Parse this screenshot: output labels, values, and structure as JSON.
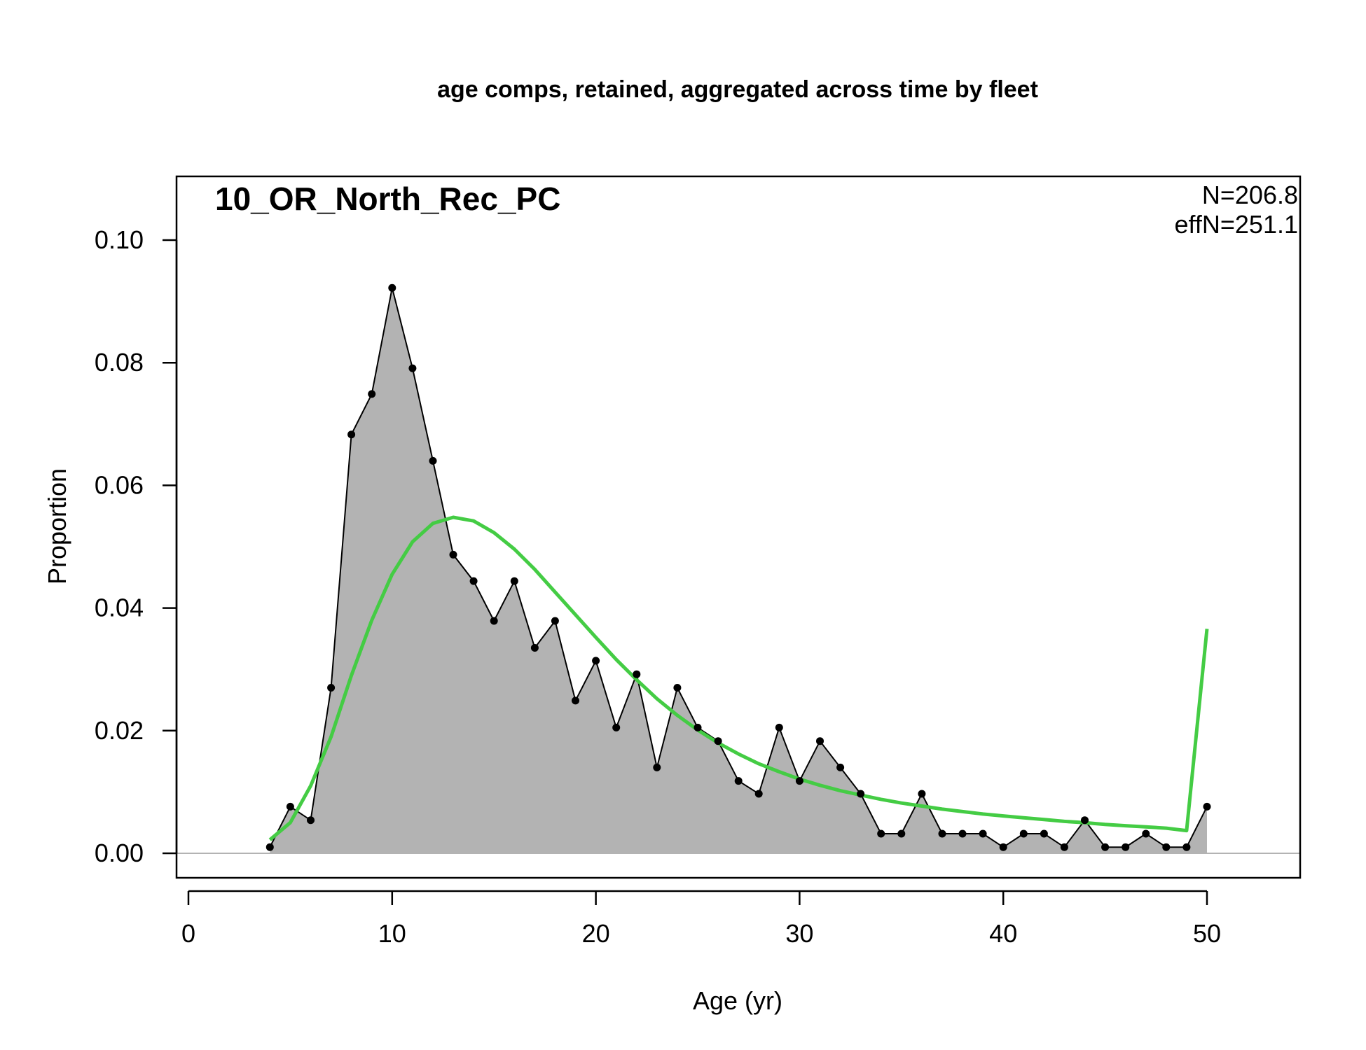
{
  "chart_data": {
    "type": "area",
    "title": "age comps, retained, aggregated across time by fleet",
    "panel_label": "10_OR_North_Rec_PC",
    "stats": {
      "n_label": "N=206.8",
      "effn_label": "effN=251.1"
    },
    "xlabel": "Age (yr)",
    "ylabel": "Proportion",
    "xlim": [
      0,
      55
    ],
    "ylim": [
      0,
      0.11
    ],
    "x_ticks": [
      0,
      10,
      20,
      30,
      40,
      50
    ],
    "x_tick_labels": [
      "0",
      "10",
      "20",
      "30",
      "40",
      "50"
    ],
    "y_ticks": [
      0,
      0.02,
      0.04,
      0.06,
      0.08,
      0.1
    ],
    "y_tick_labels": [
      "0.00",
      "0.02",
      "0.04",
      "0.06",
      "0.08",
      "0.10"
    ],
    "grid": false,
    "colors": {
      "observed_fill": "#b3b3b3",
      "observed_line": "#000000",
      "expected_line": "#44cc44",
      "zero_line": "#b3b3b3"
    },
    "series": [
      {
        "kind": "observed",
        "x": [
          4,
          5,
          6,
          7,
          8,
          9,
          10,
          11,
          12,
          13,
          14,
          15,
          16,
          17,
          18,
          19,
          20,
          21,
          22,
          23,
          24,
          25,
          26,
          27,
          28,
          29,
          30,
          31,
          32,
          33,
          34,
          35,
          36,
          37,
          38,
          39,
          40,
          41,
          42,
          43,
          44,
          45,
          46,
          47,
          48,
          49,
          50
        ],
        "values": [
          0.001,
          0.0076,
          0.0054,
          0.027,
          0.0683,
          0.0749,
          0.0922,
          0.0791,
          0.064,
          0.0487,
          0.0444,
          0.0379,
          0.0444,
          0.0335,
          0.0379,
          0.0249,
          0.0314,
          0.0205,
          0.0292,
          0.014,
          0.027,
          0.0205,
          0.0183,
          0.0118,
          0.0097,
          0.0205,
          0.0118,
          0.0183,
          0.014,
          0.0097,
          0.0032,
          0.0032,
          0.0097,
          0.0032,
          0.0032,
          0.0032,
          0.001,
          0.0032,
          0.0032,
          0.001,
          0.0054,
          0.001,
          0.001,
          0.0032,
          0.001,
          0.001,
          0.0076
        ]
      },
      {
        "kind": "expected",
        "x": [
          4,
          5,
          6,
          7,
          8,
          9,
          10,
          11,
          12,
          13,
          14,
          15,
          16,
          17,
          18,
          19,
          20,
          21,
          22,
          23,
          24,
          25,
          26,
          27,
          28,
          29,
          30,
          31,
          32,
          33,
          34,
          35,
          36,
          37,
          38,
          39,
          40,
          41,
          42,
          43,
          44,
          45,
          46,
          47,
          48,
          49,
          50
        ],
        "values": [
          0.0022,
          0.005,
          0.011,
          0.019,
          0.029,
          0.038,
          0.0455,
          0.0508,
          0.0538,
          0.0548,
          0.0542,
          0.0523,
          0.0496,
          0.0463,
          0.0426,
          0.0389,
          0.0352,
          0.0316,
          0.0283,
          0.0252,
          0.0225,
          0.0201,
          0.018,
          0.0162,
          0.0146,
          0.0133,
          0.0121,
          0.0111,
          0.0102,
          0.0095,
          0.0088,
          0.0082,
          0.0077,
          0.0072,
          0.0068,
          0.0064,
          0.0061,
          0.0058,
          0.0055,
          0.0052,
          0.005,
          0.0047,
          0.0045,
          0.0043,
          0.0041,
          0.0037,
          0.0366
        ]
      }
    ]
  }
}
